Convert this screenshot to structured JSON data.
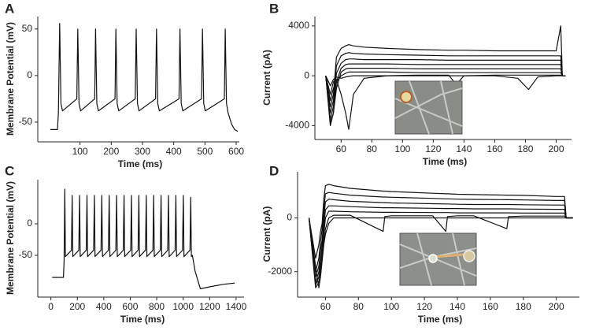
{
  "chart_data": [
    {
      "type": "line",
      "panel": "A",
      "x_label": "Time (ms)",
      "y_label": "Membrane Potential (mV)",
      "x": [
        5,
        28,
        31,
        35,
        39,
        44,
        90,
        93,
        97,
        102,
        147,
        150,
        154,
        159,
        212,
        215,
        219,
        224,
        277,
        280,
        284,
        289,
        342,
        345,
        349,
        354,
        417,
        420,
        424,
        429,
        489,
        492,
        496,
        501,
        562,
        565,
        569,
        574,
        585,
        595,
        605
      ],
      "series": [
        {
          "color": "#111111",
          "values": [
            -58,
            -58,
            -40,
            56,
            -30,
            -38,
            -25,
            50,
            -30,
            -38,
            -25,
            50,
            -30,
            -38,
            -25,
            50,
            -30,
            -38,
            -25,
            50,
            -30,
            -38,
            -25,
            50,
            -30,
            -38,
            -25,
            50,
            -30,
            -38,
            -25,
            50,
            -30,
            -38,
            -25,
            50,
            -30,
            -40,
            -52,
            -58,
            -60
          ]
        }
      ],
      "xlim": [
        -25,
        610
      ],
      "xticks": [
        100,
        200,
        300,
        400,
        500,
        600
      ],
      "ylim": [
        -67,
        60
      ],
      "yticks": [
        -50,
        0,
        50
      ]
    },
    {
      "type": "line",
      "panel": "B",
      "x_label": "Time (ms)",
      "y_label": "Current (pA)",
      "x": [
        50,
        53,
        55,
        57,
        60,
        63,
        65,
        68,
        75,
        90,
        110,
        130,
        135,
        140,
        160,
        175,
        182,
        188,
        200,
        203,
        204,
        206
      ],
      "series": [
        {
          "color": "#111111",
          "values": [
            0,
            -2500,
            -1500,
            1500,
            2200,
            2400,
            2500,
            2400,
            2300,
            2200,
            2100,
            2050,
            2050,
            2050,
            2000,
            2000,
            2000,
            2000,
            2000,
            4000,
            0,
            0
          ]
        },
        {
          "color": "#111111",
          "values": [
            0,
            -3000,
            -2000,
            800,
            1600,
            1800,
            1850,
            1800,
            1750,
            1700,
            1650,
            1600,
            1600,
            1600,
            1600,
            1600,
            1600,
            1600,
            1600,
            1600,
            0,
            0
          ]
        },
        {
          "color": "#111111",
          "values": [
            0,
            -3500,
            -2500,
            200,
            1000,
            1300,
            1350,
            1350,
            1300,
            1300,
            1300,
            1250,
            1250,
            1250,
            1250,
            1250,
            1250,
            1250,
            1250,
            1250,
            0,
            0
          ]
        },
        {
          "color": "#111111",
          "values": [
            0,
            -3800,
            -3000,
            -500,
            600,
            900,
            950,
            950,
            950,
            950,
            900,
            900,
            900,
            900,
            900,
            900,
            900,
            900,
            900,
            900,
            0,
            0
          ]
        },
        {
          "color": "#111111",
          "values": [
            0,
            -4000,
            -3000,
            -1000,
            300,
            550,
            600,
            600,
            600,
            600,
            550,
            550,
            550,
            550,
            550,
            550,
            550,
            550,
            550,
            550,
            0,
            0
          ]
        },
        {
          "color": "#111111",
          "values": [
            0,
            -2000,
            -1000,
            -500,
            0,
            200,
            300,
            300,
            300,
            300,
            250,
            250,
            250,
            250,
            250,
            250,
            250,
            250,
            250,
            250,
            0,
            0
          ]
        },
        {
          "color": "#111111",
          "values": [
            0,
            -1500,
            -500,
            -300,
            -1500,
            -3000,
            -4300,
            -1500,
            -200,
            0,
            50,
            50,
            -700,
            0,
            50,
            50,
            50,
            50,
            50,
            50,
            0,
            0
          ]
        },
        {
          "color": "#111111",
          "values": [
            0,
            -800,
            -300,
            -100,
            -200,
            -100,
            -50,
            0,
            0,
            0,
            0,
            0,
            0,
            0,
            0,
            -200,
            -1100,
            -100,
            0,
            0,
            0,
            0
          ]
        }
      ],
      "xlim": [
        45,
        210
      ],
      "xticks": [
        60,
        80,
        100,
        120,
        140,
        160,
        180,
        200
      ],
      "ylim": [
        -4800,
        4500
      ],
      "yticks": [
        -4000,
        0,
        4000
      ]
    },
    {
      "type": "line",
      "panel": "C",
      "x_label": "Time (ms)",
      "y_label": "Membrane Potential (mV)",
      "x": [
        10,
        95,
        100,
        105,
        110,
        155,
        161,
        166,
        211,
        217,
        222,
        267,
        273,
        278,
        323,
        329,
        334,
        379,
        385,
        390,
        435,
        441,
        446,
        491,
        497,
        502,
        547,
        553,
        558,
        603,
        609,
        614,
        659,
        665,
        670,
        715,
        721,
        726,
        771,
        777,
        782,
        827,
        833,
        838,
        883,
        889,
        894,
        939,
        945,
        950,
        995,
        1001,
        1006,
        1051,
        1057,
        1062,
        1070,
        1090,
        1130,
        1200,
        1300,
        1390
      ],
      "series": [
        {
          "color": "#111111",
          "values": [
            -85,
            -85,
            -60,
            55,
            -52,
            -42,
            45,
            -52,
            -42,
            45,
            -52,
            -42,
            45,
            -52,
            -42,
            45,
            -52,
            -42,
            45,
            -52,
            -42,
            45,
            -52,
            -42,
            45,
            -52,
            -42,
            45,
            -52,
            -42,
            45,
            -52,
            -42,
            45,
            -52,
            -42,
            45,
            -52,
            -42,
            45,
            -52,
            -42,
            45,
            -52,
            -42,
            45,
            -52,
            -42,
            45,
            -52,
            -42,
            45,
            -52,
            -42,
            42,
            -52,
            -50,
            -75,
            -103,
            -100,
            -96,
            -94
          ]
        }
      ],
      "xlim": [
        -75,
        1460
      ],
      "xticks": [
        0,
        200,
        400,
        600,
        800,
        1000,
        1200,
        1400
      ],
      "ylim": [
        -110,
        65
      ],
      "yticks": [
        -50,
        0
      ]
    },
    {
      "type": "line",
      "panel": "D",
      "x_label": "Time (ms)",
      "y_label": "Current (pA)",
      "x": [
        50,
        54,
        56,
        57,
        58,
        59,
        60,
        62,
        65,
        75,
        95,
        96,
        100,
        125,
        133,
        134,
        140,
        150,
        170,
        171,
        180,
        200,
        205,
        206,
        210
      ],
      "series": [
        {
          "color": "#111111",
          "values": [
            0,
            -1500,
            -1000,
            -500,
            -200,
            700,
            1200,
            1250,
            1200,
            1100,
            1000,
            1000,
            980,
            920,
            900,
            900,
            880,
            870,
            850,
            850,
            840,
            800,
            800,
            0,
            0
          ]
        },
        {
          "color": "#111111",
          "values": [
            0,
            -2000,
            -1500,
            -900,
            -400,
            300,
            900,
            950,
            920,
            850,
            780,
            780,
            770,
            730,
            710,
            710,
            700,
            690,
            680,
            680,
            670,
            650,
            650,
            0,
            0
          ]
        },
        {
          "color": "#111111",
          "values": [
            0,
            -2200,
            -1800,
            -1200,
            -800,
            0,
            600,
            700,
            680,
            620,
            570,
            570,
            560,
            530,
            520,
            520,
            510,
            500,
            500,
            500,
            490,
            480,
            480,
            0,
            0
          ]
        },
        {
          "color": "#111111",
          "values": [
            0,
            -2400,
            -2000,
            -1600,
            -1000,
            -300,
            300,
            450,
            450,
            420,
            380,
            380,
            380,
            360,
            350,
            350,
            350,
            340,
            340,
            340,
            330,
            320,
            320,
            0,
            0
          ]
        },
        {
          "color": "#111111",
          "values": [
            0,
            -2500,
            -2200,
            -1800,
            -1300,
            -600,
            0,
            250,
            250,
            230,
            210,
            210,
            210,
            200,
            200,
            200,
            190,
            190,
            190,
            190,
            180,
            180,
            180,
            0,
            0
          ]
        },
        {
          "color": "#111111",
          "values": [
            0,
            -2600,
            -2400,
            -2000,
            -1500,
            -900,
            -400,
            0,
            100,
            100,
            -500,
            50,
            80,
            80,
            -500,
            50,
            80,
            80,
            -400,
            50,
            70,
            70,
            70,
            0,
            0
          ]
        },
        {
          "color": "#111111",
          "values": [
            0,
            -1800,
            -2600,
            -2200,
            -1600,
            -1000,
            -600,
            -200,
            0,
            0,
            0,
            0,
            0,
            0,
            0,
            0,
            0,
            0,
            0,
            0,
            0,
            0,
            0,
            0,
            0
          ]
        }
      ],
      "xlim": [
        45,
        214
      ],
      "xticks": [
        60,
        80,
        100,
        120,
        140,
        160,
        180,
        200
      ],
      "ylim": [
        -2800,
        1600
      ],
      "yticks": [
        -2000,
        0
      ]
    }
  ]
}
